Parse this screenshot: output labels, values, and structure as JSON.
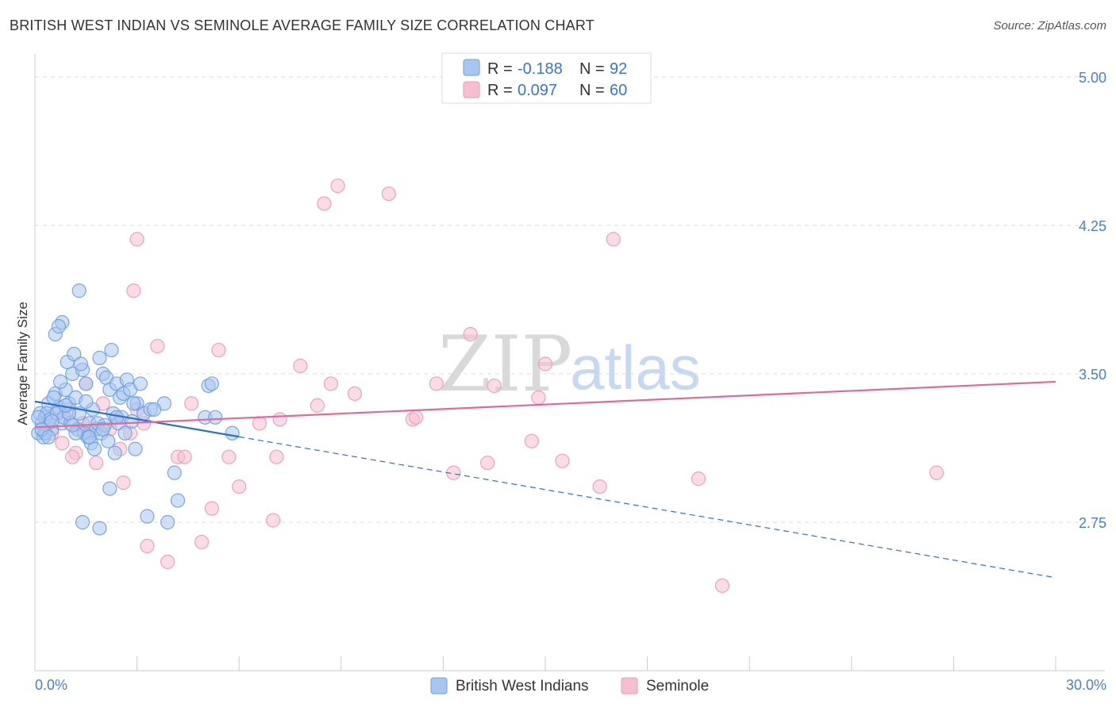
{
  "title": "BRITISH WEST INDIAN VS SEMINOLE AVERAGE FAMILY SIZE CORRELATION CHART",
  "source": "Source: ZipAtlas.com",
  "watermark": {
    "zip": "ZIP",
    "atlas": "atlas"
  },
  "colors": {
    "blue_fill": "#a9c6ee",
    "blue_stroke": "#6f9fdf",
    "blue_line": "#2f6fd0",
    "pink_fill": "#f6bfd1",
    "pink_stroke": "#ec9ab6",
    "pink_line": "#e26a96",
    "grid": "#dddddd",
    "axis_text": "#4a7fd0"
  },
  "legend": {
    "rows": [
      {
        "r_label": "R = ",
        "r_value": "-0.188",
        "n_label": "N = ",
        "n_value": "92"
      },
      {
        "r_label": "R = ",
        "r_value": "0.097",
        "n_label": "N = ",
        "n_value": "60"
      }
    ]
  },
  "chart_data": {
    "type": "scatter",
    "title": "BRITISH WEST INDIAN VS SEMINOLE AVERAGE FAMILY SIZE CORRELATION CHART",
    "xlabel": "",
    "ylabel": "Average Family Size",
    "xlim": [
      0,
      30
    ],
    "ylim": [
      2.0,
      5.1
    ],
    "x_tick_labels": {
      "min": "0.0%",
      "max": "30.0%"
    },
    "y_ticks": [
      2.75,
      3.5,
      4.25,
      5.0
    ],
    "y_tick_labels": [
      "2.75",
      "3.50",
      "4.25",
      "5.00"
    ],
    "grid": true,
    "legend_position": "top-center",
    "series": [
      {
        "name": "British West Indians",
        "r": -0.188,
        "n": 92,
        "trend": {
          "x0": 0.0,
          "y0": 3.36,
          "x1": 30.0,
          "y1": 2.47,
          "solid_until": 6.0
        },
        "points": [
          [
            0.1,
            3.2
          ],
          [
            0.2,
            3.25
          ],
          [
            0.15,
            3.3
          ],
          [
            0.3,
            3.28
          ],
          [
            0.25,
            3.18
          ],
          [
            0.4,
            3.35
          ],
          [
            0.5,
            3.22
          ],
          [
            0.35,
            3.3
          ],
          [
            0.6,
            3.4
          ],
          [
            0.45,
            3.27
          ],
          [
            0.7,
            3.33
          ],
          [
            0.8,
            3.25
          ],
          [
            0.55,
            3.38
          ],
          [
            0.65,
            3.3
          ],
          [
            0.9,
            3.42
          ],
          [
            1.0,
            3.35
          ],
          [
            0.75,
            3.46
          ],
          [
            0.85,
            3.28
          ],
          [
            1.1,
            3.5
          ],
          [
            1.2,
            3.38
          ],
          [
            0.95,
            3.56
          ],
          [
            1.05,
            3.25
          ],
          [
            1.3,
            3.3
          ],
          [
            1.4,
            3.52
          ],
          [
            1.15,
            3.6
          ],
          [
            1.25,
            3.22
          ],
          [
            1.5,
            3.45
          ],
          [
            1.6,
            3.25
          ],
          [
            1.35,
            3.55
          ],
          [
            1.45,
            3.2
          ],
          [
            1.7,
            3.32
          ],
          [
            1.8,
            3.22
          ],
          [
            1.55,
            3.18
          ],
          [
            1.65,
            3.15
          ],
          [
            1.9,
            3.58
          ],
          [
            2.0,
            3.5
          ],
          [
            1.75,
            3.12
          ],
          [
            1.85,
            3.25
          ],
          [
            2.1,
            3.48
          ],
          [
            2.2,
            3.42
          ],
          [
            1.95,
            3.2
          ],
          [
            2.05,
            3.24
          ],
          [
            2.3,
            3.3
          ],
          [
            2.4,
            3.45
          ],
          [
            2.15,
            3.16
          ],
          [
            2.25,
            3.62
          ],
          [
            2.5,
            3.38
          ],
          [
            2.6,
            3.4
          ],
          [
            2.35,
            3.1
          ],
          [
            2.45,
            3.25
          ],
          [
            2.7,
            3.47
          ],
          [
            2.8,
            3.42
          ],
          [
            2.55,
            3.28
          ],
          [
            2.65,
            3.2
          ],
          [
            3.0,
            3.35
          ],
          [
            3.1,
            3.45
          ],
          [
            2.85,
            3.26
          ],
          [
            2.95,
            3.12
          ],
          [
            3.2,
            3.3
          ],
          [
            3.4,
            3.32
          ],
          [
            0.6,
            3.7
          ],
          [
            0.8,
            3.76
          ],
          [
            0.7,
            3.74
          ],
          [
            1.3,
            3.92
          ],
          [
            2.2,
            2.92
          ],
          [
            1.4,
            2.75
          ],
          [
            1.9,
            2.72
          ],
          [
            3.3,
            2.78
          ],
          [
            3.9,
            2.75
          ],
          [
            4.2,
            2.86
          ],
          [
            4.1,
            3.0
          ],
          [
            3.8,
            3.35
          ],
          [
            5.0,
            3.28
          ],
          [
            5.1,
            3.44
          ],
          [
            5.3,
            3.28
          ],
          [
            5.8,
            3.2
          ],
          [
            5.2,
            3.45
          ],
          [
            0.3,
            3.2
          ],
          [
            0.2,
            3.22
          ],
          [
            0.1,
            3.28
          ],
          [
            0.4,
            3.18
          ],
          [
            0.5,
            3.26
          ],
          [
            1.0,
            3.3
          ],
          [
            1.2,
            3.2
          ],
          [
            1.6,
            3.18
          ],
          [
            2.0,
            3.22
          ],
          [
            2.4,
            3.28
          ],
          [
            2.9,
            3.35
          ],
          [
            3.5,
            3.32
          ],
          [
            0.9,
            3.34
          ],
          [
            1.1,
            3.24
          ],
          [
            1.5,
            3.36
          ]
        ]
      },
      {
        "name": "Seminole",
        "r": 0.097,
        "n": 60,
        "trend": {
          "x0": 0.0,
          "y0": 3.23,
          "x1": 30.0,
          "y1": 3.46
        },
        "points": [
          [
            0.2,
            3.22
          ],
          [
            0.4,
            3.25
          ],
          [
            0.5,
            3.2
          ],
          [
            0.8,
            3.15
          ],
          [
            1.0,
            3.32
          ],
          [
            1.2,
            3.1
          ],
          [
            1.4,
            3.25
          ],
          [
            1.6,
            3.2
          ],
          [
            1.8,
            3.05
          ],
          [
            2.0,
            3.35
          ],
          [
            2.2,
            3.22
          ],
          [
            2.4,
            3.28
          ],
          [
            2.5,
            3.12
          ],
          [
            2.6,
            2.95
          ],
          [
            2.8,
            3.2
          ],
          [
            3.0,
            3.32
          ],
          [
            3.2,
            3.25
          ],
          [
            3.0,
            4.18
          ],
          [
            2.9,
            3.92
          ],
          [
            3.6,
            3.64
          ],
          [
            3.3,
            2.63
          ],
          [
            3.9,
            2.55
          ],
          [
            4.2,
            3.08
          ],
          [
            4.4,
            3.08
          ],
          [
            4.6,
            3.35
          ],
          [
            4.9,
            2.65
          ],
          [
            5.2,
            2.82
          ],
          [
            5.4,
            3.62
          ],
          [
            5.7,
            3.08
          ],
          [
            6.0,
            2.93
          ],
          [
            6.6,
            3.25
          ],
          [
            7.0,
            2.76
          ],
          [
            7.1,
            3.08
          ],
          [
            7.2,
            3.27
          ],
          [
            7.8,
            3.54
          ],
          [
            8.3,
            3.34
          ],
          [
            8.5,
            4.36
          ],
          [
            8.7,
            3.45
          ],
          [
            8.9,
            4.45
          ],
          [
            9.4,
            3.4
          ],
          [
            10.4,
            4.41
          ],
          [
            11.1,
            3.27
          ],
          [
            11.2,
            3.28
          ],
          [
            11.8,
            3.45
          ],
          [
            12.3,
            3.0
          ],
          [
            12.8,
            3.7
          ],
          [
            13.3,
            3.05
          ],
          [
            13.5,
            3.44
          ],
          [
            14.6,
            3.16
          ],
          [
            14.8,
            3.38
          ],
          [
            15.0,
            3.55
          ],
          [
            15.5,
            3.06
          ],
          [
            16.6,
            2.93
          ],
          [
            17.0,
            4.18
          ],
          [
            19.5,
            2.97
          ],
          [
            20.2,
            2.43
          ],
          [
            26.5,
            3.0
          ],
          [
            1.5,
            3.45
          ],
          [
            0.6,
            3.3
          ],
          [
            1.1,
            3.08
          ]
        ]
      }
    ]
  }
}
